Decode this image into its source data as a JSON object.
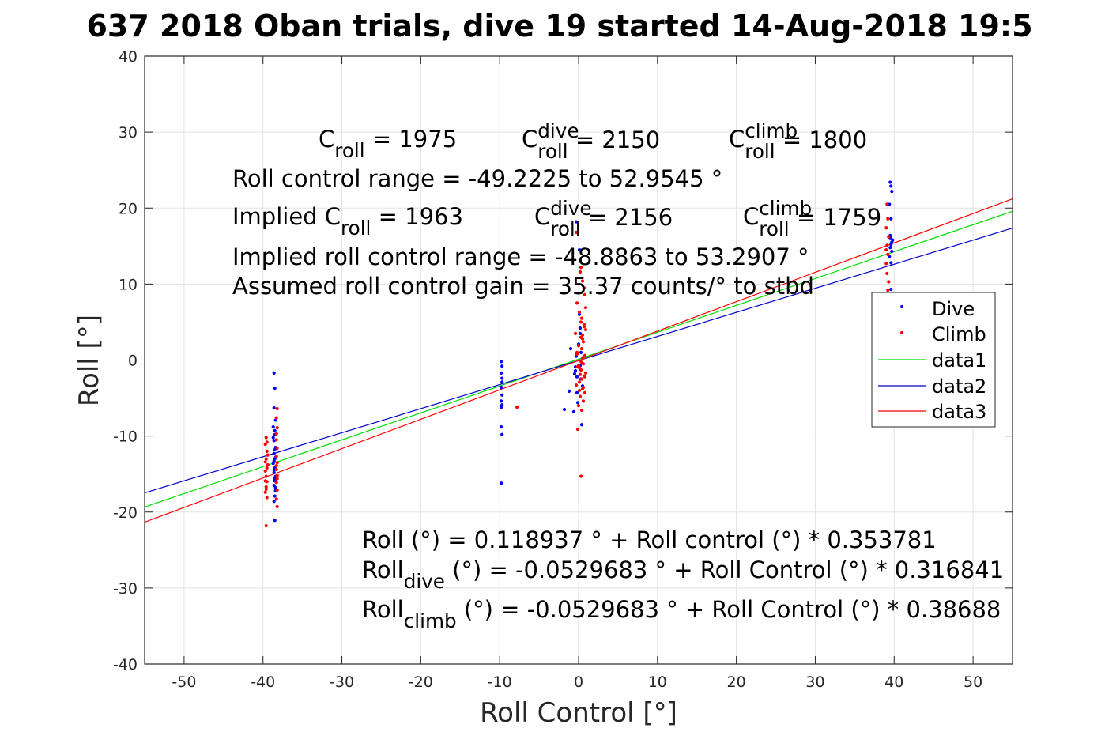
{
  "chart_data": {
    "type": "scatter",
    "title": "637 2018 Oban trials, dive 19 started 14-Aug-2018 19:5",
    "xlabel": "Roll Control [°]",
    "ylabel": "Roll [°]",
    "xlim": [
      -55,
      55
    ],
    "ylim": [
      -40,
      40
    ],
    "xticks": [
      -50,
      -40,
      -30,
      -20,
      -10,
      0,
      10,
      20,
      30,
      40,
      50
    ],
    "yticks": [
      -40,
      -30,
      -20,
      -10,
      0,
      10,
      20,
      30,
      40
    ],
    "grid": true,
    "legend_position": "right",
    "legend": [
      "Dive",
      "Climb",
      "data1",
      "data2",
      "data3"
    ],
    "colors": {
      "dive": "#0000ff",
      "climb": "#ff0000",
      "data1": "#00e000",
      "data2": "#0000cc",
      "data3": "#ff0000"
    },
    "series": [
      {
        "name": "Dive",
        "kind": "points",
        "color": "#0000ff",
        "x": [
          -38.6,
          -38.5,
          -38.6,
          -38.4,
          -38.7,
          -38.5,
          -38.6,
          -38.4,
          -38.6,
          -38.5,
          -38.7,
          -38.5,
          -38.6,
          -38.4,
          -38.5,
          -38.6,
          -38.4,
          -38.5,
          -38.6,
          -38.5,
          -38.4,
          -38.6,
          -38.5,
          -38.7,
          -38.5,
          -38.6,
          -38.4,
          -38.5,
          -9.8,
          -9.7,
          -9.8,
          -9.7,
          -9.8,
          -9.7,
          -9.8,
          -9.7,
          -9.8,
          -9.8,
          -9.7,
          -9.8,
          -9.7,
          -1.0,
          -0.3,
          0.1,
          -0.5,
          0.2,
          -0.2,
          0.4,
          -1.2,
          -0.4,
          0.3,
          -0.6,
          0.0,
          0.5,
          -0.3,
          0.2,
          -0.1,
          0.3,
          -0.2,
          -1.8,
          0.1,
          -0.4,
          0.2,
          39.5,
          39.6,
          39.7,
          39.4,
          39.6,
          39.5,
          39.8,
          39.6,
          39.5,
          39.7,
          39.4,
          39.6,
          39.5,
          39.7,
          39.6
        ],
        "y": [
          -1.7,
          -3.7,
          -6.3,
          -7.9,
          -8.8,
          -9.8,
          -10.6,
          -11.5,
          -12.3,
          -13.0,
          -13.6,
          -14.2,
          -14.8,
          -15.3,
          -15.9,
          -16.5,
          -17.2,
          -17.9,
          -18.6,
          -21.1,
          -12.8,
          -14.5,
          -15.6,
          -10.2,
          -11.8,
          -13.3,
          -16.8,
          -9.3,
          -0.2,
          -0.8,
          -1.7,
          -2.4,
          -3.6,
          -4.6,
          -5.4,
          -5.9,
          -6.2,
          -8.8,
          -9.8,
          -16.2,
          -2.9,
          1.5,
          18.2,
          14.5,
          -1.8,
          3.5,
          -4.3,
          -8.5,
          -4.1,
          -0.9,
          -2.5,
          -6.8,
          2.1,
          -3.4,
          0.5,
          -0.7,
          -5.6,
          1.0,
          -2.2,
          -6.5,
          6.0,
          -1.4,
          4.2,
          23.4,
          22.9,
          22.2,
          20.5,
          18.6,
          16.4,
          15.8,
          15.2,
          14.8,
          14.3,
          13.6,
          12.8,
          16.1,
          15.5,
          9.3
        ]
      },
      {
        "name": "Climb",
        "kind": "points",
        "color": "#ff0000",
        "x": [
          -39.6,
          -39.7,
          -39.5,
          -39.6,
          -39.4,
          -39.7,
          -39.6,
          -39.5,
          -39.6,
          -39.7,
          -39.5,
          -39.6,
          -39.4,
          -39.7,
          -39.5,
          -39.6,
          -39.5,
          -39.7,
          -38.2,
          -38.3,
          -38.2,
          -38.3,
          -38.2,
          -38.3,
          -38.2,
          -38.3,
          -38.2,
          -38.3,
          -38.2,
          -38.3,
          -38.2,
          -38.3,
          -38.2,
          -38.3,
          -7.8,
          -0.3,
          0.2,
          0.5,
          0.8,
          -0.2,
          0.1,
          0.4,
          0.7,
          0.9,
          -0.4,
          0.3,
          0.6,
          0.0,
          0.4,
          -0.2,
          0.8,
          0.5,
          0.2,
          0.6,
          -0.1,
          0.3,
          0.9,
          0.7,
          0.4,
          0.1,
          -0.3,
          0.5,
          0.8,
          0.2,
          0.6,
          0.0,
          0.4,
          -0.1,
          0.3,
          0.7,
          0.2,
          0.5,
          0.1,
          0.8,
          0.3,
          0.6,
          -0.2,
          0.4,
          0.9,
          0.2,
          0.5,
          0.1,
          0.7,
          0.0,
          0.3,
          39.1,
          39.2,
          39.0,
          39.3,
          39.1,
          39.2,
          39.0,
          39.1,
          39.3,
          39.2,
          39.1,
          39.0
        ],
        "y": [
          -10.2,
          -11.1,
          -12.0,
          -13.0,
          -13.8,
          -14.6,
          -15.3,
          -16.0,
          -16.7,
          -17.4,
          -18.1,
          -21.8,
          -12.5,
          -15.9,
          -14.2,
          -17.0,
          -10.8,
          -13.4,
          -6.4,
          -7.6,
          -8.9,
          -10.5,
          -11.6,
          -12.7,
          -13.5,
          -14.4,
          -15.2,
          -16.1,
          -17.1,
          -18.3,
          -19.3,
          -13.9,
          -15.6,
          -9.7,
          -6.2,
          16.8,
          13.0,
          10.4,
          8.6,
          7.5,
          6.3,
          5.5,
          4.7,
          4.0,
          3.5,
          3.0,
          2.4,
          1.9,
          1.5,
          1.0,
          0.6,
          0.3,
          -0.1,
          -0.5,
          -0.9,
          -1.3,
          -1.7,
          -2.1,
          -2.5,
          -2.9,
          -3.3,
          -3.8,
          -4.3,
          -4.8,
          -5.4,
          -6.0,
          -6.6,
          -9.1,
          -15.3,
          9.5,
          11.6,
          2.8,
          -1.0,
          -2.2,
          5.0,
          -3.6,
          0.8,
          -0.3,
          6.9,
          -1.9,
          3.3,
          -4.0,
          4.4,
          -0.7,
          12.2,
          20.5,
          18.6,
          17.4,
          16.2,
          15.1,
          13.9,
          12.7,
          11.4,
          10.3,
          9.2,
          8.8,
          14.5
        ]
      },
      {
        "name": "data1",
        "kind": "line",
        "color": "#00e000",
        "x": [
          -55,
          55
        ],
        "y": [
          -19.34,
          19.58
        ]
      },
      {
        "name": "data2",
        "kind": "line",
        "color": "#0000cc",
        "x": [
          -55,
          55
        ],
        "y": [
          -17.48,
          17.37
        ]
      },
      {
        "name": "data3",
        "kind": "line",
        "color": "#ff0000",
        "x": [
          -55,
          55
        ],
        "y": [
          -21.33,
          21.22
        ]
      }
    ],
    "annotations_top": [
      {
        "key": "c_roll",
        "parts": [
          {
            "t": "C"
          },
          {
            "t": "roll",
            "sub": true
          },
          {
            "t": " = 1975"
          }
        ]
      },
      {
        "key": "c_roll_dive",
        "parts": [
          {
            "t": "C"
          },
          {
            "t": "dive",
            "sup": true
          },
          {
            "t": "roll",
            "sub": true
          },
          {
            "t": " = 2150"
          }
        ]
      },
      {
        "key": "c_roll_climb",
        "parts": [
          {
            "t": "C"
          },
          {
            "t": "climb",
            "sup": true
          },
          {
            "t": "roll",
            "sub": true
          },
          {
            "t": " = 1800"
          }
        ]
      },
      {
        "key": "roll_control_range",
        "text": "Roll control range = -49.2225 to 52.9545 °"
      },
      {
        "key": "implied_c_roll",
        "parts": [
          {
            "t": "Implied C"
          },
          {
            "t": "roll",
            "sub": true
          },
          {
            "t": " = 1963"
          }
        ]
      },
      {
        "key": "implied_c_roll_dive",
        "parts": [
          {
            "t": "C"
          },
          {
            "t": "dive",
            "sup": true
          },
          {
            "t": "roll",
            "sub": true
          },
          {
            "t": " = 2156"
          }
        ]
      },
      {
        "key": "implied_c_roll_climb",
        "parts": [
          {
            "t": "C"
          },
          {
            "t": "climb",
            "sup": true
          },
          {
            "t": "roll",
            "sub": true
          },
          {
            "t": " = 1759"
          }
        ]
      },
      {
        "key": "implied_range",
        "text": "Implied roll control range = -48.8863 to 53.2907 °"
      },
      {
        "key": "assumed_gain",
        "text": "Assumed roll control gain = 35.37 counts/° to stbd"
      }
    ],
    "annotations_bottom": [
      {
        "key": "fit_all",
        "parts": [
          {
            "t": "Roll (°) = 0.118937 ° + Roll control (°) * 0.353781"
          }
        ]
      },
      {
        "key": "fit_dive",
        "parts": [
          {
            "t": "Roll"
          },
          {
            "t": "dive",
            "sub": true
          },
          {
            "t": " (°) = -0.0529683 ° + Roll Control (°) * 0.316841"
          }
        ]
      },
      {
        "key": "fit_climb",
        "parts": [
          {
            "t": "Roll"
          },
          {
            "t": "climb",
            "sub": true
          },
          {
            "t": " (°) = -0.0529683 ° + Roll Control (°) * 0.38688"
          }
        ]
      }
    ]
  }
}
